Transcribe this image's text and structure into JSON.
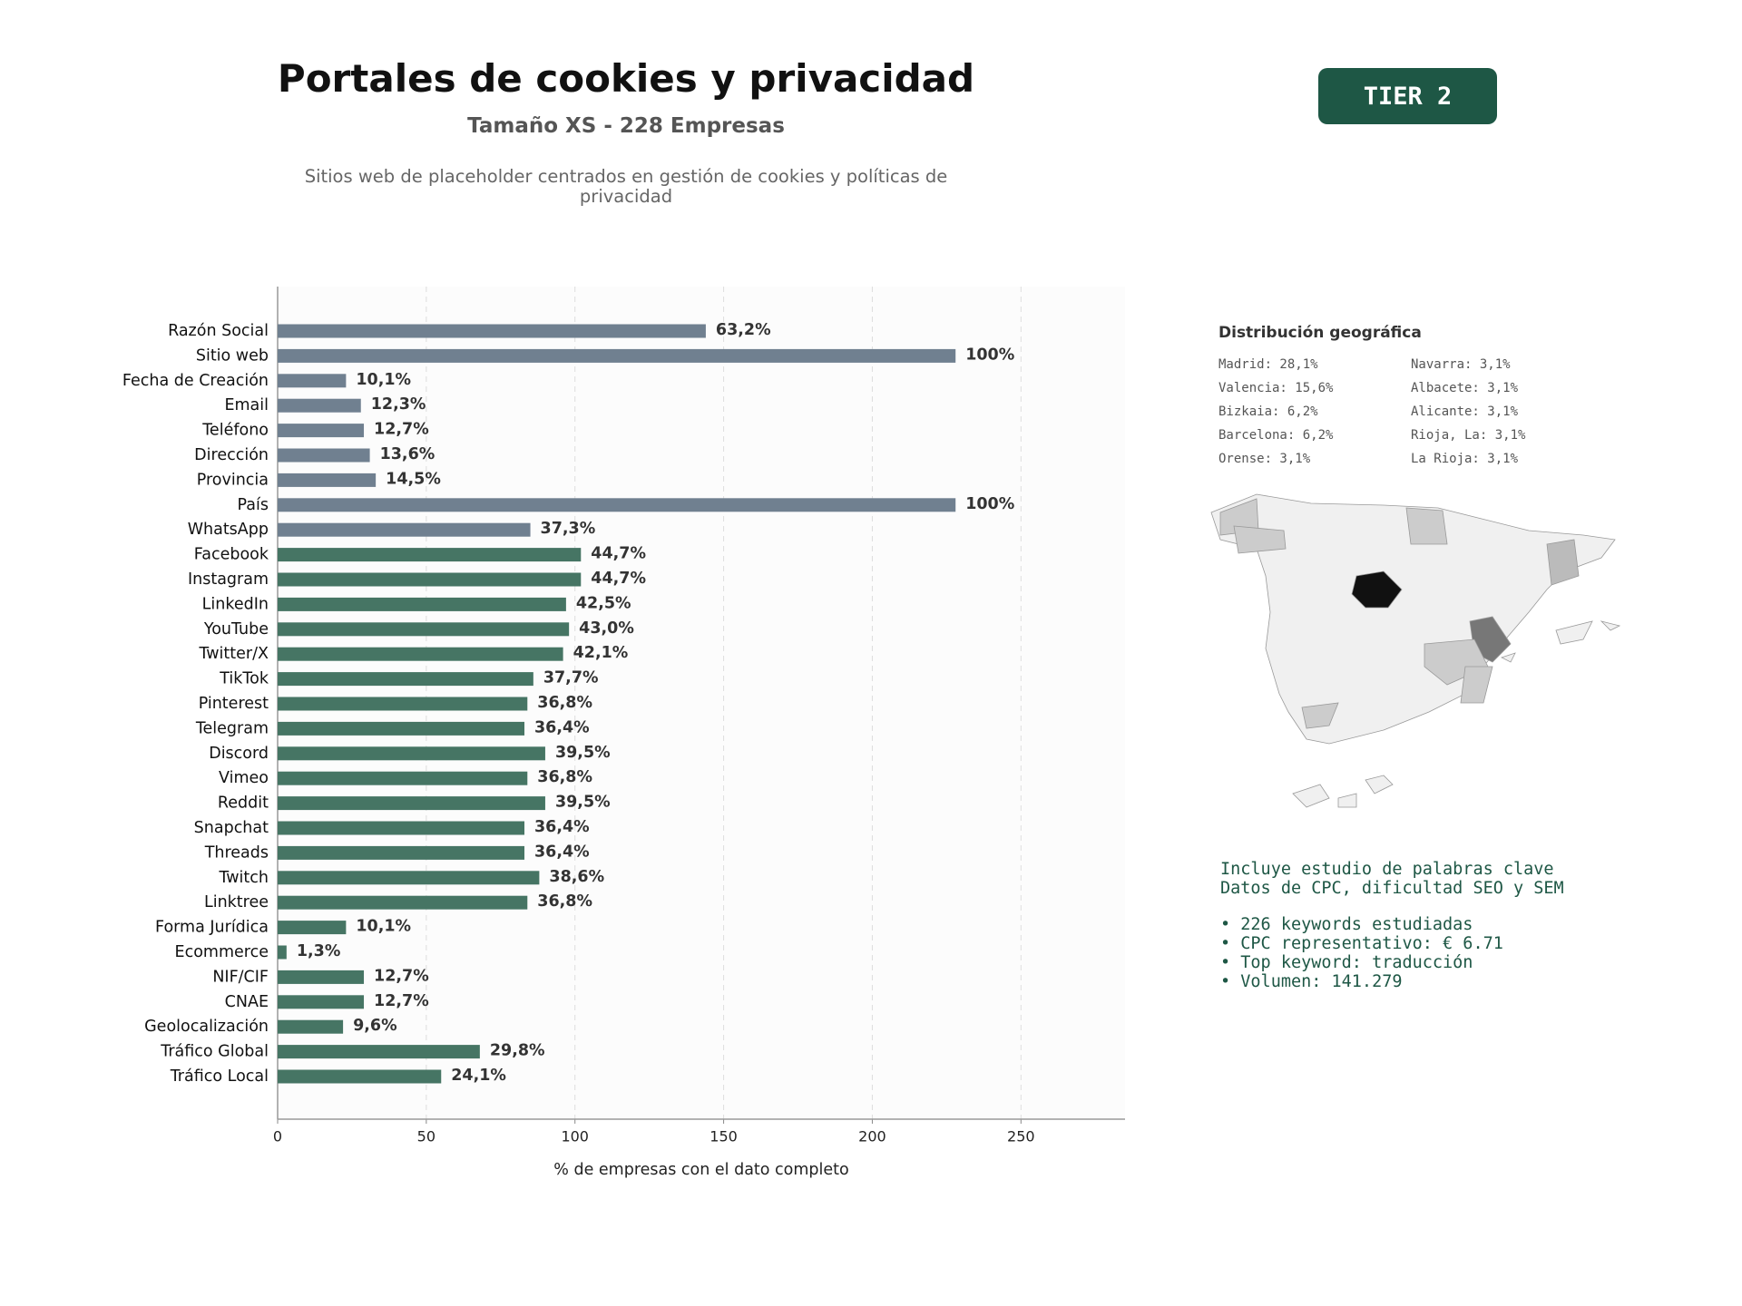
{
  "header": {
    "title": "Portales de cookies y privacidad",
    "subtitle": "Tamaño XS - 228 Empresas",
    "description": "Sitios web de placeholder centrados en gestión de cookies y políticas de privacidad",
    "badge": "TIER 2"
  },
  "chart_data": {
    "type": "barh",
    "categories": [
      "Razón Social",
      "Sitio web",
      "Fecha de Creación",
      "Email",
      "Teléfono",
      "Dirección",
      "Provincia",
      "País",
      "WhatsApp",
      "Facebook",
      "Instagram",
      "LinkedIn",
      "YouTube",
      "Twitter/X",
      "TikTok",
      "Pinterest",
      "Telegram",
      "Discord",
      "Vimeo",
      "Reddit",
      "Snapchat",
      "Threads",
      "Twitch",
      "Linktree",
      "Forma Jurídica",
      "Ecommerce",
      "NIF/CIF",
      "CNAE",
      "Geolocalización",
      "Tráfico Global",
      "Tráfico Local"
    ],
    "values": [
      144,
      228,
      23,
      28,
      29,
      31,
      33,
      228,
      85,
      102,
      102,
      97,
      98,
      96,
      86,
      84,
      83,
      90,
      84,
      90,
      83,
      83,
      88,
      84,
      23,
      3,
      29,
      29,
      22,
      68,
      55
    ],
    "value_labels": [
      "63,2%",
      "100%",
      "10,1%",
      "12,3%",
      "12,7%",
      "13,6%",
      "14,5%",
      "100%",
      "37,3%",
      "44,7%",
      "44,7%",
      "42,5%",
      "43,0%",
      "42,1%",
      "37,7%",
      "36,8%",
      "36,4%",
      "39,5%",
      "36,8%",
      "39,5%",
      "36,4%",
      "36,4%",
      "38,6%",
      "36,8%",
      "10,1%",
      "1,3%",
      "12,7%",
      "12,7%",
      "9,6%",
      "29,8%",
      "24,1%"
    ],
    "colors": [
      "#708090",
      "#708090",
      "#708090",
      "#708090",
      "#708090",
      "#708090",
      "#708090",
      "#708090",
      "#708090",
      "#467564",
      "#467564",
      "#467564",
      "#467564",
      "#467564",
      "#467564",
      "#467564",
      "#467564",
      "#467564",
      "#467564",
      "#467564",
      "#467564",
      "#467564",
      "#467564",
      "#467564",
      "#467564",
      "#467564",
      "#467564",
      "#467564",
      "#467564",
      "#467564",
      "#467564"
    ],
    "xlabel": "% de empresas con el dato completo",
    "xlim": [
      0,
      285
    ],
    "xticks": [
      0,
      50,
      100,
      150,
      200,
      250
    ],
    "grid": true
  },
  "geo": {
    "title": "Distribución geográfica",
    "entries": [
      "Madrid: 28,1%",
      "Valencia: 15,6%",
      "Bizkaia: 6,2%",
      "Barcelona: 6,2%",
      "Orense: 3,1%",
      "Navarra: 3,1%",
      "Albacete: 3,1%",
      "Alicante: 3,1%",
      "Rioja, La: 3,1%",
      "La Rioja: 3,1%"
    ]
  },
  "keywords": {
    "intro": [
      "Incluye estudio de palabras clave",
      "Datos de CPC, dificultad SEO y SEM"
    ],
    "bullets": [
      "• 226 keywords estudiadas",
      "• CPC representativo: € 6.71",
      "• Top keyword: traducción",
      "• Volumen: 141.279"
    ]
  }
}
